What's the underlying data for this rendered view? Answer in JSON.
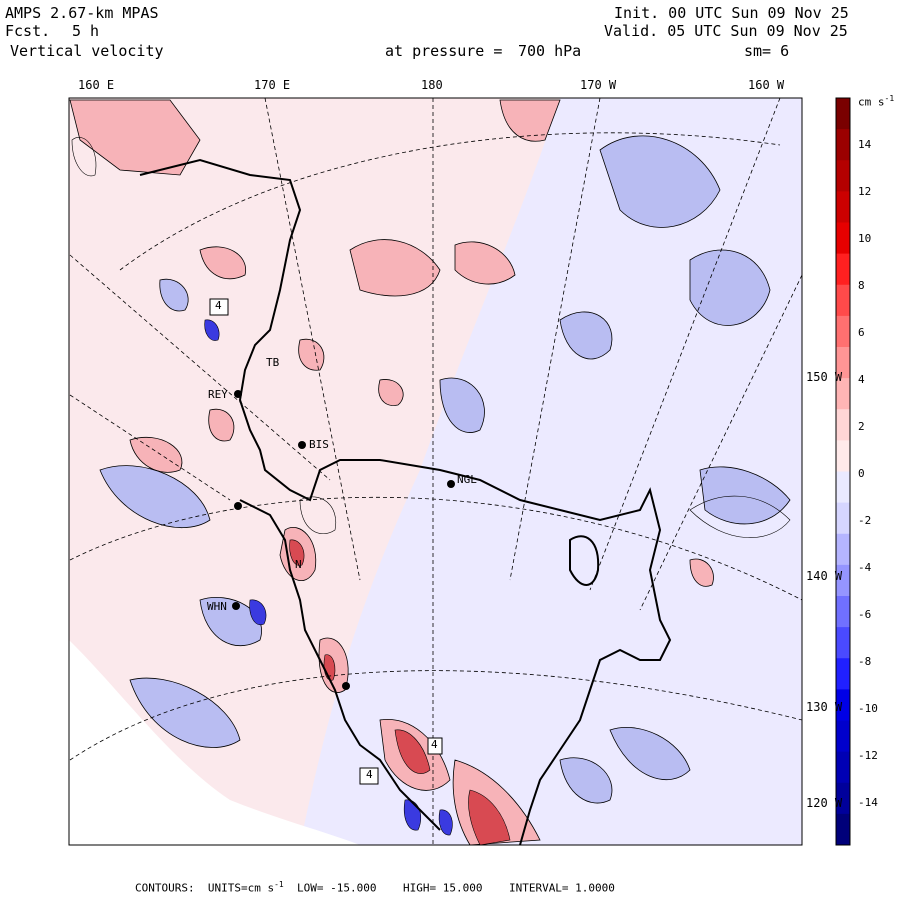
{
  "header": {
    "model": "AMPS 2.67-km MPAS",
    "fcst_label": "Fcst.",
    "fcst_value": "5 h",
    "variable": "Vertical velocity",
    "pressure_label": "at pressure =",
    "pressure_value": "700 hPa",
    "init": "Init. 00 UTC Sun 09 Nov 25",
    "valid": "Valid. 05 UTC Sun 09 Nov 25",
    "smooth": "sm= 6"
  },
  "lon_labels": [
    "160 E",
    "170 E",
    "180",
    "170 W",
    "160 W"
  ],
  "lat_labels": [
    "150 W",
    "140 W",
    "130 W",
    "120 W"
  ],
  "colorbar": {
    "units": "cm s",
    "units_exp": "-1",
    "ticks": [
      "14",
      "12",
      "10",
      "8",
      "6",
      "4",
      "2",
      "0",
      "-2",
      "-4",
      "-6",
      "-8",
      "-10",
      "-12",
      "-14"
    ],
    "colors": [
      "#7a0000",
      "#9b0000",
      "#b40000",
      "#cc0000",
      "#e60000",
      "#ff2020",
      "#ff4a4a",
      "#ff7070",
      "#ff9595",
      "#ffb5b5",
      "#ffd6d6",
      "#ffeaea",
      "#eaeaff",
      "#d6d6ff",
      "#b5b5ff",
      "#9595ff",
      "#7070ff",
      "#4a4aff",
      "#2020ff",
      "#0000e6",
      "#0000cc",
      "#0000b4",
      "#00009b",
      "#00007a"
    ]
  },
  "stations": [
    {
      "id": "REY",
      "label": "REY"
    },
    {
      "id": "BIS",
      "label": "BIS"
    },
    {
      "id": "NGL",
      "label": "NGL"
    },
    {
      "id": "WHN",
      "label": "WHN"
    },
    {
      "id": "TB",
      "label": "TB"
    },
    {
      "id": "N",
      "label": "N"
    }
  ],
  "footer": {
    "contours": "CONTOURS:",
    "units_label": "UNITS=cm s",
    "units_exp": "-1",
    "low": "LOW= -15.000",
    "high": "HIGH= 15.000",
    "interval": "INTERVAL= 1.0000"
  }
}
